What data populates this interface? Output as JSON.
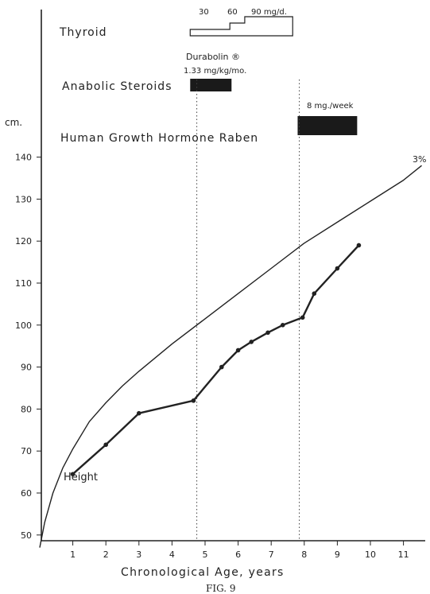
{
  "figure": {
    "caption": "FIG. 9",
    "xlabel": "Chronological Age, years",
    "y_unit": "cm."
  },
  "treatments": {
    "thyroid": {
      "label": "Thyroid",
      "dose_labels": [
        "30",
        "60",
        "90 mg/d."
      ],
      "steps": [
        {
          "from": 4.55,
          "to": 5.75,
          "dose": 30
        },
        {
          "from": 5.75,
          "to": 6.2,
          "dose": 60
        },
        {
          "from": 6.2,
          "to": 7.65,
          "dose": 90
        }
      ]
    },
    "anabolic": {
      "label": "Anabolic Steroids",
      "drug": "Durabolin ®",
      "dose": "1.33 mg/kg/mo.",
      "from": 4.55,
      "to": 5.8
    },
    "hgh": {
      "label": "Human Growth Hormone Raben",
      "dose": "8 mg./week",
      "from": 7.8,
      "to": 9.6
    }
  },
  "chart_data": {
    "type": "line",
    "xlabel": "Chronological Age, years",
    "ylabel": "cm.",
    "xlim": [
      0,
      12
    ],
    "ylim": [
      46,
      147
    ],
    "x_ticks": [
      1,
      2,
      3,
      4,
      5,
      6,
      7,
      8,
      9,
      10,
      11
    ],
    "y_ticks": [
      50,
      60,
      70,
      80,
      90,
      100,
      110,
      120,
      130,
      140
    ],
    "grid": false,
    "reference_lines_x": [
      4.75,
      7.85
    ],
    "series": [
      {
        "name": "Height",
        "style": "markers",
        "points": [
          [
            1.0,
            64.5
          ],
          [
            2.0,
            71.5
          ],
          [
            3.0,
            79.0
          ],
          [
            4.65,
            82.0
          ],
          [
            5.5,
            90.0
          ],
          [
            6.0,
            94.0
          ],
          [
            6.4,
            96.0
          ],
          [
            6.9,
            98.2
          ],
          [
            7.35,
            100.0
          ],
          [
            7.95,
            101.8
          ],
          [
            8.3,
            107.5
          ],
          [
            9.0,
            113.5
          ],
          [
            9.65,
            119.0
          ]
        ]
      },
      {
        "name": "3%",
        "style": "plain",
        "points": [
          [
            0.0,
            47.0
          ],
          [
            0.15,
            53.0
          ],
          [
            0.4,
            60.0
          ],
          [
            0.7,
            66.0
          ],
          [
            1.0,
            70.5
          ],
          [
            1.5,
            77.0
          ],
          [
            2.0,
            81.5
          ],
          [
            2.5,
            85.5
          ],
          [
            3.0,
            89.0
          ],
          [
            4.0,
            95.5
          ],
          [
            5.0,
            101.5
          ],
          [
            6.0,
            107.5
          ],
          [
            7.0,
            113.5
          ],
          [
            8.0,
            119.5
          ],
          [
            9.0,
            124.5
          ],
          [
            10.0,
            129.5
          ],
          [
            11.0,
            134.5
          ],
          [
            11.55,
            138.0
          ]
        ]
      }
    ]
  }
}
